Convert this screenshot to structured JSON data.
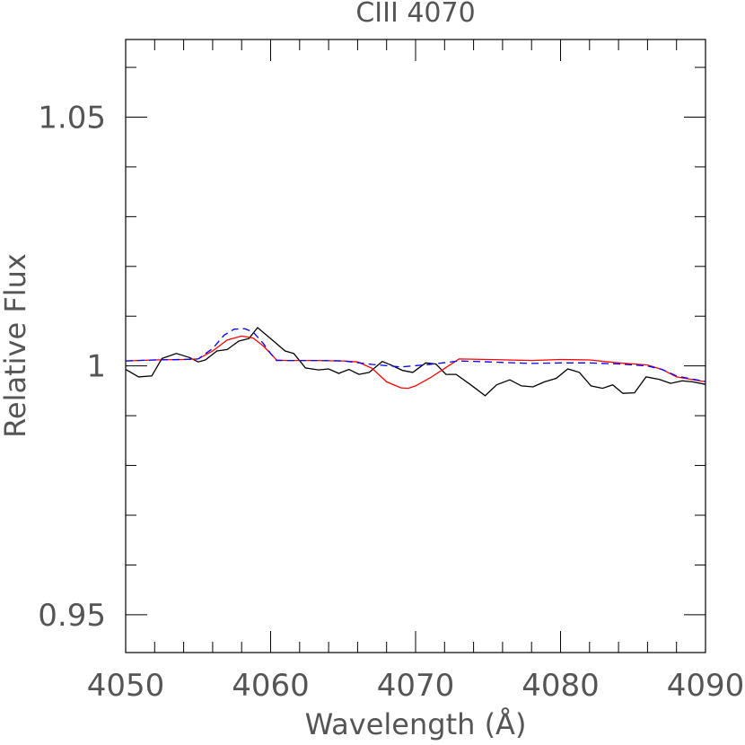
{
  "chart_data": {
    "type": "line",
    "title": "CIII 4070",
    "xlabel": "Wavelength (Å)",
    "ylabel": "Relative Flux",
    "xlim": [
      4050,
      4090
    ],
    "ylim": [
      0.9424,
      1.0656
    ],
    "xticks": [
      4050,
      4060,
      4070,
      4080,
      4090
    ],
    "xtick_labels": [
      "4050",
      "4060",
      "4070",
      "4080",
      "4090"
    ],
    "yticks": [
      0.95,
      1.0,
      1.05
    ],
    "ytick_labels": [
      "0.95",
      "1",
      "1.05"
    ],
    "grid": false,
    "series": [
      {
        "color": "#000000",
        "style": "solid",
        "x": [
          4050,
          4050.9,
          4051.8,
          4052.5,
          4053.5,
          4054.4,
          4055.0,
          4055.5,
          4056.3,
          4057.0,
          4057.8,
          4058.5,
          4059.1,
          4060.0,
          4061.0,
          4061.6,
          4062.4,
          4063.3,
          4064.0,
          4064.7,
          4065.4,
          4066.1,
          4066.8,
          4067.7,
          4068.3,
          4069.1,
          4069.8,
          4070.7,
          4071.4,
          4072.1,
          4072.8,
          4073.8,
          4074.8,
          4075.6,
          4076.5,
          4077.3,
          4078.1,
          4078.9,
          4079.7,
          4080.5,
          4081.3,
          4082.1,
          4082.9,
          4083.6,
          4084.3,
          4085.1,
          4085.9,
          4086.8,
          4087.6,
          4088.4,
          4089.1,
          4090.0
        ],
        "y": [
          0.9993,
          0.9978,
          0.998,
          1.0015,
          1.0025,
          1.0017,
          1.0008,
          1.0012,
          1.003,
          1.0033,
          1.005,
          1.0055,
          1.0077,
          1.0055,
          1.003,
          1.0025,
          0.9996,
          0.9992,
          0.9994,
          0.9985,
          0.9993,
          0.9983,
          0.9987,
          1.0009,
          1.0002,
          0.9991,
          0.9987,
          1.0006,
          1.0004,
          0.9983,
          0.9983,
          0.9962,
          0.994,
          0.9962,
          0.9972,
          0.996,
          0.9958,
          0.9968,
          0.9975,
          0.9994,
          0.9987,
          0.996,
          0.9955,
          0.9962,
          0.9945,
          0.9946,
          0.9978,
          0.9973,
          0.9965,
          0.997,
          0.9968,
          0.9963
        ]
      },
      {
        "color": "#ff0000",
        "style": "solid",
        "x": [
          4050,
          4052,
          4054,
          4055,
          4056,
          4057,
          4058,
          4058.8,
          4059.5,
          4060,
          4060.4,
          4061,
          4063,
          4065,
          4066,
          4067,
          4068,
          4069,
          4069.5,
          4070,
          4071,
          4072,
          4073,
          4075,
          4078,
          4080,
          4082,
          4084,
          4086,
          4087,
          4088,
          4089,
          4090
        ],
        "y": [
          1.001,
          1.0012,
          1.0013,
          1.0014,
          1.003,
          1.0052,
          1.006,
          1.0056,
          1.004,
          1.0025,
          1.0012,
          1.0011,
          1.0011,
          1.001,
          1.0008,
          0.9995,
          0.9968,
          0.9956,
          0.9955,
          0.996,
          0.9976,
          0.9995,
          1.0014,
          1.0013,
          1.0011,
          1.0013,
          1.0012,
          1.0006,
          1.0002,
          0.9993,
          0.9978,
          0.9973,
          0.9968
        ]
      },
      {
        "color": "#0000ff",
        "style": "dashed",
        "x": [
          4050,
          4052,
          4054,
          4055,
          4056,
          4056.8,
          4057.5,
          4058.2,
          4058.8,
          4059.5,
          4060,
          4060.4,
          4061,
          4063,
          4065,
          4067,
          4069,
          4071,
          4073,
          4075,
          4078,
          4080,
          4082,
          4084,
          4086,
          4087,
          4088,
          4089,
          4090
        ],
        "y": [
          1.001,
          1.0012,
          1.0013,
          1.0014,
          1.0035,
          1.0062,
          1.0074,
          1.0075,
          1.0068,
          1.0045,
          1.0025,
          1.0011,
          1.0011,
          1.0011,
          1.001,
          1.0003,
          0.9998,
          1.0003,
          1.001,
          1.0008,
          1.0005,
          1.0006,
          1.0006,
          1.0004,
          1.0,
          0.9993,
          0.998,
          0.9974,
          0.9969
        ]
      }
    ]
  }
}
